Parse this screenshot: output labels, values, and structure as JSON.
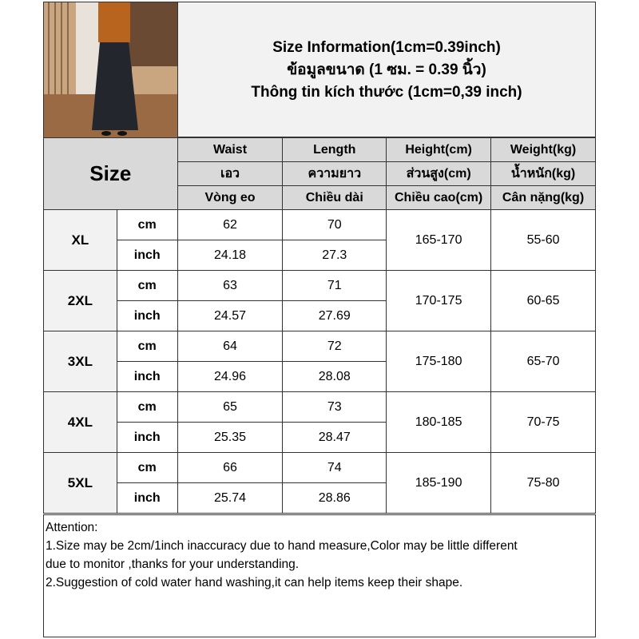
{
  "header": {
    "title_lines": [
      "Size Information(1cm=0.39inch)",
      "ข้อมูลขนาด (1 ซม. = 0.39 นิ้ว)",
      "Thông tin kích thước (1cm=0,39 inch)"
    ]
  },
  "table": {
    "size_label": "Size",
    "columns": [
      {
        "en": "Waist",
        "th": "เอว",
        "vi": "Vòng eo"
      },
      {
        "en": "Length",
        "th": "ความยาว",
        "vi": "Chiều dài"
      },
      {
        "en": "Height(cm)",
        "th": "ส่วนสูง(cm)",
        "vi": "Chiều cao(cm)"
      },
      {
        "en": "Weight(kg)",
        "th": "น้ำหนัก(kg)",
        "vi": "Cân nặng(kg)"
      }
    ],
    "unit_cm": "cm",
    "unit_inch": "inch",
    "rows": [
      {
        "size": "XL",
        "waist_cm": "62",
        "length_cm": "70",
        "waist_inch": "24.18",
        "length_inch": "27.3",
        "height": "165-170",
        "weight": "55-60"
      },
      {
        "size": "2XL",
        "waist_cm": "63",
        "length_cm": "71",
        "waist_inch": "24.57",
        "length_inch": "27.69",
        "height": "170-175",
        "weight": "60-65"
      },
      {
        "size": "3XL",
        "waist_cm": "64",
        "length_cm": "72",
        "waist_inch": "24.96",
        "length_inch": "28.08",
        "height": "175-180",
        "weight": "65-70"
      },
      {
        "size": "4XL",
        "waist_cm": "65",
        "length_cm": "73",
        "waist_inch": "25.35",
        "length_inch": "28.47",
        "height": "180-185",
        "weight": "70-75"
      },
      {
        "size": "5XL",
        "waist_cm": "66",
        "length_cm": "74",
        "waist_inch": "25.74",
        "length_inch": "28.86",
        "height": "185-190",
        "weight": "75-80"
      }
    ]
  },
  "attention": {
    "lines": [
      "Attention:",
      "1.Size may be 2cm/1inch inaccuracy due to hand measure,Color may be little different",
      "due to monitor ,thanks for your understanding.",
      "2.Suggestion of cold water hand washing,it can help items keep their shape."
    ]
  },
  "colors": {
    "header_bg": "#d9d9d9",
    "title_bg": "#f2f2f2",
    "border": "#333333"
  }
}
